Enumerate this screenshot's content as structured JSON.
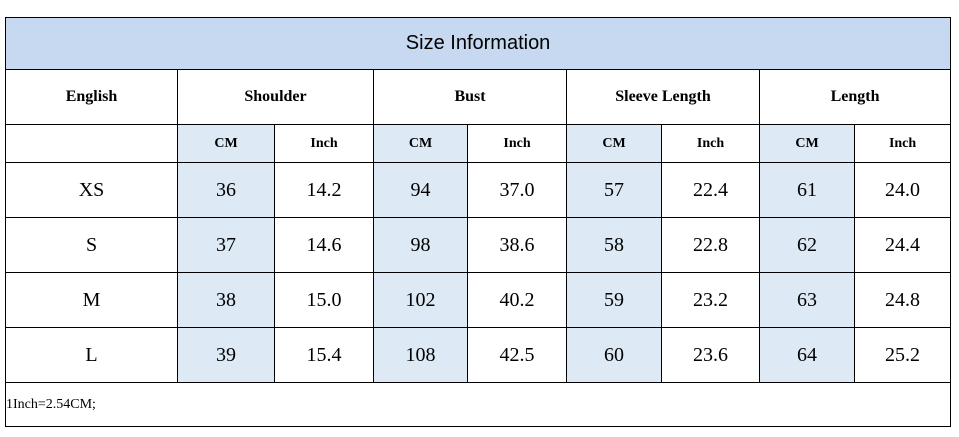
{
  "title": "Size Information",
  "header": [
    "English",
    "Shoulder",
    "Bust",
    "Sleeve Length",
    "Length"
  ],
  "subheader": [
    "CM",
    "Inch",
    "CM",
    "Inch",
    "CM",
    "Inch",
    "CM",
    "Inch"
  ],
  "rows": [
    [
      "XS",
      "36",
      "14.2",
      "94",
      "37.0",
      "57",
      "22.4",
      "61",
      "24.0"
    ],
    [
      "S",
      "37",
      "14.6",
      "98",
      "38.6",
      "58",
      "22.8",
      "62",
      "24.4"
    ],
    [
      "M",
      "38",
      "15.0",
      "102",
      "40.2",
      "59",
      "23.2",
      "63",
      "24.8"
    ],
    [
      "L",
      "39",
      "15.4",
      "108",
      "42.5",
      "60",
      "23.6",
      "64",
      "25.2"
    ]
  ],
  "note": "1Inch=2.54CM;"
}
